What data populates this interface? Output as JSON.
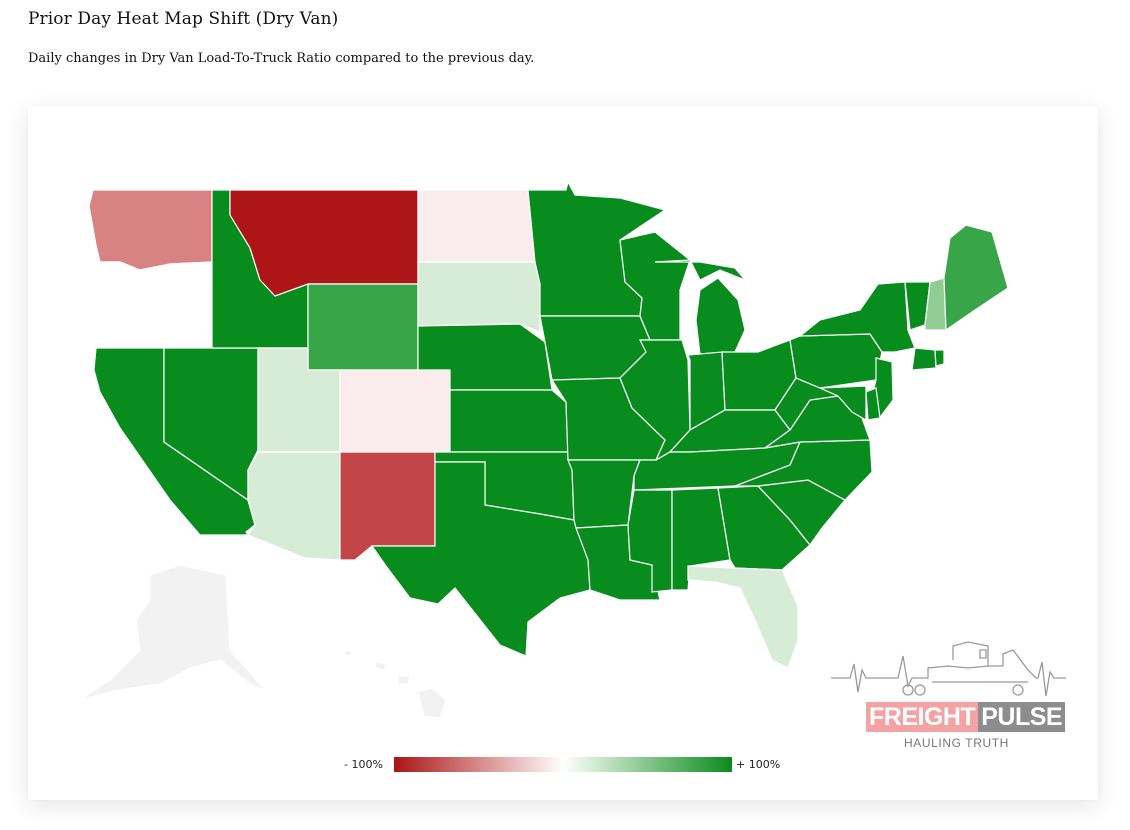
{
  "header": {
    "title": "Prior Day Heat Map Shift (Dry Van)",
    "subtitle": "Daily changes in Dry Van Load-To-Truck Ratio compared to the previous day."
  },
  "legend": {
    "min_label": "- 100%",
    "max_label": "+ 100%",
    "low_color": "#aa1515",
    "mid_color": "#ffffff",
    "high_color": "#0a8a1c"
  },
  "colors": {
    "strong_negative": "#ad1517",
    "negative": "#c24647",
    "mild_negative": "#d98283",
    "slight_negative": "#f9ecec",
    "neutral": "#ffffff",
    "slight_positive": "#d6ecd6",
    "mild_positive": "#90cc93",
    "positive": "#38a548",
    "strong_positive": "#088c1e",
    "no_data": "#f2f2f2"
  },
  "states": [
    {
      "name": "washington",
      "level": "mild_negative"
    },
    {
      "name": "oregon",
      "level": "neutral"
    },
    {
      "name": "montana",
      "level": "strong_negative"
    },
    {
      "name": "new-mexico",
      "level": "negative"
    },
    {
      "name": "north-dakota",
      "level": "slight_negative"
    },
    {
      "name": "colorado",
      "level": "slight_negative"
    },
    {
      "name": "wyoming",
      "level": "positive"
    },
    {
      "name": "maine",
      "level": "positive"
    },
    {
      "name": "new-hampshire",
      "level": "mild_positive"
    },
    {
      "name": "south-dakota",
      "level": "slight_positive"
    },
    {
      "name": "utah",
      "level": "slight_positive"
    },
    {
      "name": "arizona",
      "level": "slight_positive"
    },
    {
      "name": "florida",
      "level": "slight_positive"
    },
    {
      "name": "idaho",
      "level": "strong_positive"
    },
    {
      "name": "california",
      "level": "strong_positive"
    },
    {
      "name": "nevada",
      "level": "strong_positive"
    },
    {
      "name": "minnesota",
      "level": "strong_positive"
    },
    {
      "name": "nebraska",
      "level": "strong_positive"
    },
    {
      "name": "kansas",
      "level": "strong_positive"
    },
    {
      "name": "oklahoma",
      "level": "strong_positive"
    },
    {
      "name": "texas",
      "level": "strong_positive"
    },
    {
      "name": "iowa",
      "level": "strong_positive"
    },
    {
      "name": "missouri",
      "level": "strong_positive"
    },
    {
      "name": "arkansas",
      "level": "strong_positive"
    },
    {
      "name": "louisiana",
      "level": "strong_positive"
    },
    {
      "name": "wisconsin",
      "level": "strong_positive"
    },
    {
      "name": "illinois",
      "level": "strong_positive"
    },
    {
      "name": "michigan",
      "level": "strong_positive"
    },
    {
      "name": "indiana",
      "level": "strong_positive"
    },
    {
      "name": "ohio",
      "level": "strong_positive"
    },
    {
      "name": "kentucky",
      "level": "strong_positive"
    },
    {
      "name": "tennessee",
      "level": "strong_positive"
    },
    {
      "name": "mississippi",
      "level": "strong_positive"
    },
    {
      "name": "alabama",
      "level": "strong_positive"
    },
    {
      "name": "georgia",
      "level": "strong_positive"
    },
    {
      "name": "south-carolina",
      "level": "strong_positive"
    },
    {
      "name": "north-carolina",
      "level": "strong_positive"
    },
    {
      "name": "virginia",
      "level": "strong_positive"
    },
    {
      "name": "west-virginia",
      "level": "strong_positive"
    },
    {
      "name": "pennsylvania",
      "level": "strong_positive"
    },
    {
      "name": "new-york",
      "level": "strong_positive"
    },
    {
      "name": "vermont",
      "level": "strong_positive"
    },
    {
      "name": "new-jersey",
      "level": "strong_positive"
    },
    {
      "name": "maryland",
      "level": "strong_positive"
    },
    {
      "name": "delaware",
      "level": "strong_positive"
    },
    {
      "name": "connecticut",
      "level": "strong_positive"
    },
    {
      "name": "rhode-island",
      "level": "strong_positive"
    },
    {
      "name": "massachusetts",
      "level": "neutral"
    },
    {
      "name": "alaska",
      "level": "no_data"
    },
    {
      "name": "hawaii",
      "level": "no_data"
    }
  ],
  "logo": {
    "word1": "FREIGHT",
    "word2": "PULSE",
    "tagline": "HAULING TRUTH"
  }
}
